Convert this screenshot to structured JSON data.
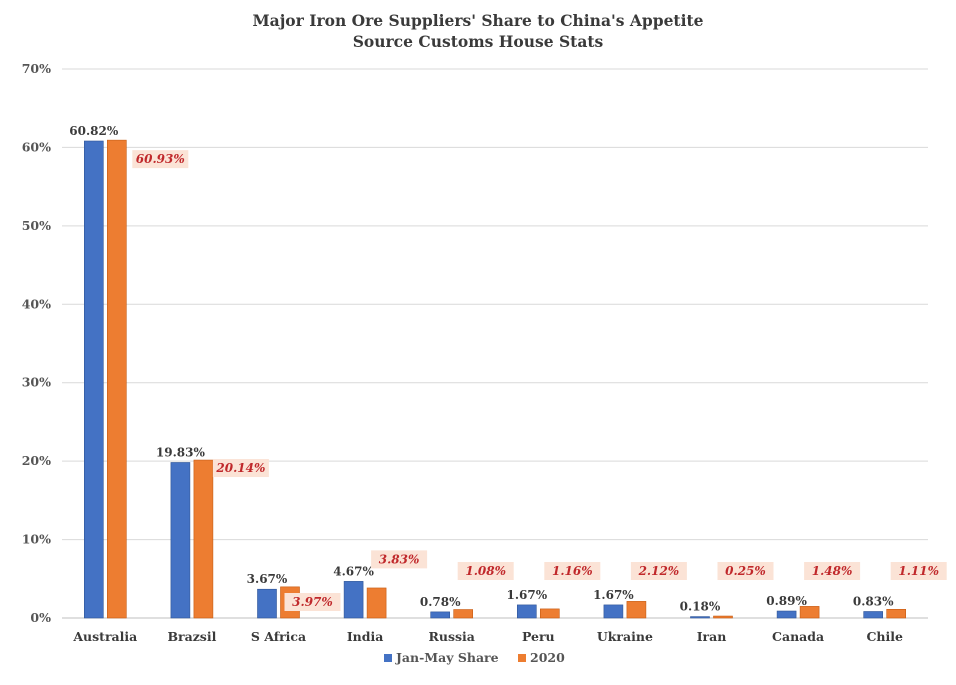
{
  "chart_data": {
    "type": "bar",
    "title": "Major Iron Ore Suppliers' Share to China's Appetite",
    "subtitle": "Source Customs House Stats",
    "categories": [
      "Australia",
      "Brazsil",
      "S Africa",
      "India",
      "Russia",
      "Peru",
      "Ukraine",
      "Iran",
      "Canada",
      "Chile"
    ],
    "series": [
      {
        "name": "Jan-May Share",
        "values": [
          60.82,
          19.83,
          3.67,
          4.67,
          0.78,
          1.67,
          1.67,
          0.18,
          0.89,
          0.83
        ],
        "labels": [
          "60.82%",
          "19.83%",
          "3.67%",
          "4.67%",
          "0.78%",
          "1.67%",
          "1.67%",
          "0.18%",
          "0.89%",
          "0.83%"
        ],
        "color": "#4472c4"
      },
      {
        "name": "2020",
        "values": [
          60.93,
          20.14,
          3.97,
          3.83,
          1.08,
          1.16,
          2.12,
          0.25,
          1.48,
          1.11
        ],
        "labels": [
          "60.93%",
          "20.14%",
          "3.97%",
          "3.83%",
          "1.08%",
          "1.16%",
          "2.12%",
          "0.25%",
          "1.48%",
          "1.11%"
        ],
        "color": "#ed7d31"
      }
    ],
    "yticks": [
      "0%",
      "10%",
      "20%",
      "30%",
      "40%",
      "50%",
      "60%",
      "70%"
    ],
    "ylim": [
      0,
      70
    ],
    "grid": true,
    "legend_position": "bottom",
    "label_highlight_color": "#fbe3d6"
  }
}
